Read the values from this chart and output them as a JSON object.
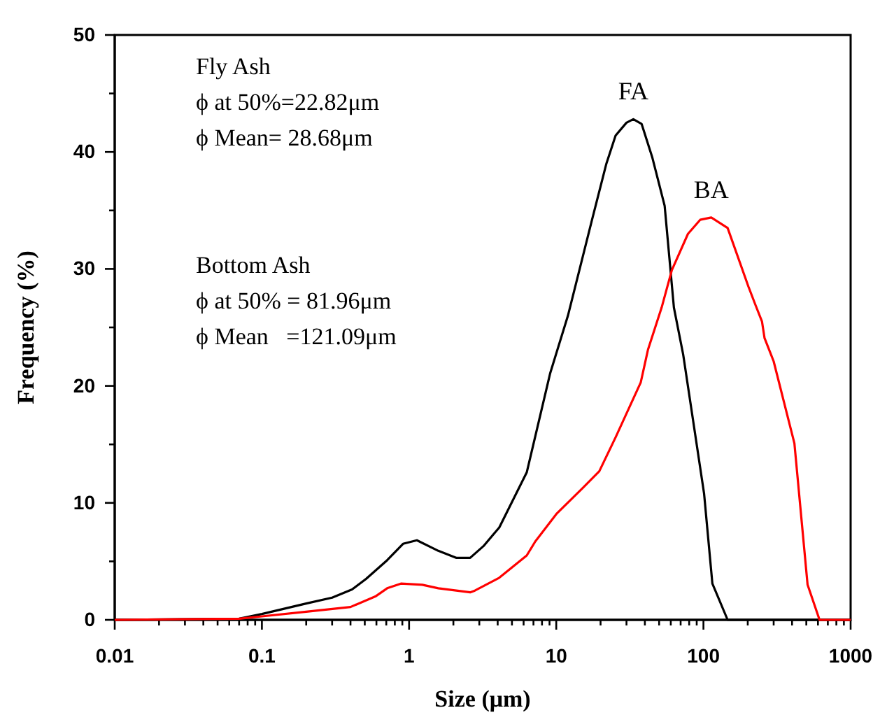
{
  "chart_data": {
    "type": "line",
    "xlabel": "Size (μm)",
    "ylabel": "Frequency (%)",
    "log": "x",
    "xlim": [
      0.01,
      1000
    ],
    "ylim": [
      0,
      50
    ],
    "xticks": [
      {
        "value": 0.01,
        "label": "0.01"
      },
      {
        "value": 0.02,
        "label": null
      },
      {
        "value": 0.03,
        "label": null
      },
      {
        "value": 0.04,
        "label": null
      },
      {
        "value": 0.05,
        "label": null
      },
      {
        "value": 0.06,
        "label": null
      },
      {
        "value": 0.07,
        "label": null
      },
      {
        "value": 0.08,
        "label": null
      },
      {
        "value": 0.09,
        "label": null
      },
      {
        "value": 0.1,
        "label": "0.1"
      },
      {
        "value": 0.2,
        "label": null
      },
      {
        "value": 0.3,
        "label": null
      },
      {
        "value": 0.4,
        "label": null
      },
      {
        "value": 0.5,
        "label": null
      },
      {
        "value": 0.6,
        "label": null
      },
      {
        "value": 0.7,
        "label": null
      },
      {
        "value": 0.8,
        "label": null
      },
      {
        "value": 0.9,
        "label": null
      },
      1,
      {
        "value": 2,
        "label": null
      },
      {
        "value": 3,
        "label": null
      },
      {
        "value": 4,
        "label": null
      },
      {
        "value": 5,
        "label": null
      },
      {
        "value": 6,
        "label": null
      },
      {
        "value": 7,
        "label": null
      },
      {
        "value": 8,
        "label": null
      },
      {
        "value": 9,
        "label": null
      },
      10,
      {
        "value": 20,
        "label": null
      },
      {
        "value": 30,
        "label": null
      },
      {
        "value": 40,
        "label": null
      },
      {
        "value": 50,
        "label": null
      },
      {
        "value": 60,
        "label": null
      },
      {
        "value": 70,
        "label": null
      },
      {
        "value": 80,
        "label": null
      },
      {
        "value": 90,
        "label": null
      },
      100,
      {
        "value": 200,
        "label": null
      },
      {
        "value": 300,
        "label": null
      },
      {
        "value": 400,
        "label": null
      },
      {
        "value": 500,
        "label": null
      },
      {
        "value": 600,
        "label": null
      },
      {
        "value": 700,
        "label": null
      },
      {
        "value": 800,
        "label": null
      },
      {
        "value": 900,
        "label": null
      },
      1000
    ],
    "yticks": [
      0,
      {
        "value": 5,
        "label": null
      },
      10,
      {
        "value": 15,
        "label": null
      },
      20,
      {
        "value": 25,
        "label": null
      },
      30,
      {
        "value": 35,
        "label": null
      },
      40,
      {
        "value": 45,
        "label": null
      },
      50
    ],
    "grid": false,
    "marker": "none",
    "line_style": "solid",
    "series": [
      {
        "name": "FA",
        "color": "#000000",
        "x": [
          0.01,
          0.07,
          0.1,
          0.2,
          0.3,
          0.41,
          0.51,
          0.71,
          0.91,
          1.13,
          1.58,
          2.1,
          2.6,
          3.2,
          4.1,
          6.3,
          9.1,
          12,
          17.5,
          21.9,
          25.3,
          30,
          33.4,
          38,
          45,
          54.5,
          63,
          72.8,
          101,
          115,
          146,
          1000
        ],
        "values": [
          0,
          0.1,
          0.5,
          1.4,
          1.9,
          2.6,
          3.5,
          5.1,
          6.5,
          6.8,
          5.9,
          5.3,
          5.3,
          6.3,
          7.9,
          12.6,
          21.1,
          26,
          34.2,
          39,
          41.4,
          42.5,
          42.8,
          42.4,
          39.5,
          35.4,
          26.7,
          22.7,
          10.8,
          3.1,
          0,
          0
        ]
      },
      {
        "name": "BA",
        "color": "#ff0000",
        "x": [
          0.01,
          0.07,
          0.1,
          0.2,
          0.4,
          0.59,
          0.71,
          0.88,
          1.23,
          1.58,
          2.6,
          2.8,
          4.1,
          6.3,
          7.2,
          10.1,
          15.2,
          19.6,
          25.3,
          37.5,
          42,
          52,
          61,
          78.5,
          95,
          113,
          146,
          202,
          226,
          250,
          260,
          300,
          415,
          510,
          615,
          1000
        ],
        "values": [
          0,
          0.1,
          0.3,
          0.7,
          1.1,
          2,
          2.7,
          3.1,
          3,
          2.7,
          2.35,
          2.5,
          3.6,
          5.5,
          6.7,
          9.1,
          11.3,
          12.7,
          15.6,
          20.3,
          23.1,
          26.7,
          29.9,
          33,
          34.2,
          34.4,
          33.5,
          28.5,
          26.9,
          25.5,
          24.1,
          22.1,
          15.1,
          3,
          0,
          0
        ]
      }
    ],
    "annotations": [
      "Fly Ash\nϕ at 50%=22.82μm\nϕ Mean= 28.68μm",
      "Bottom Ash\nϕ at 50% = 81.96μm\nϕ Mean   =121.09μm"
    ]
  }
}
